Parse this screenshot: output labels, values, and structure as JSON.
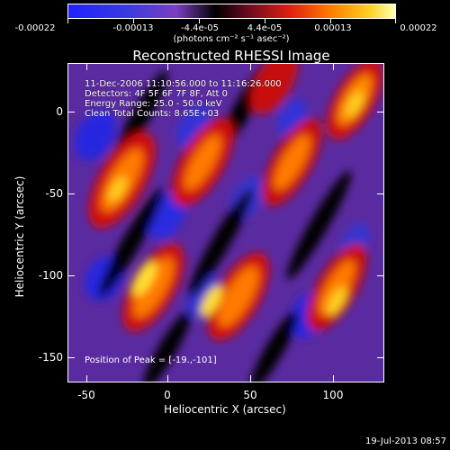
{
  "colorbar": {
    "tick_labels": [
      "-0.00022",
      "-0.00013",
      "-4.4e-05",
      "4.4e-05",
      "0.00013",
      "0.00022"
    ],
    "units": "(photons cm⁻² s⁻¹ asec⁻²)"
  },
  "title": "Reconstructed RHESSI Image",
  "info": {
    "time_range": "11-Dec-2006 11:10:56.000 to 11:16:26.000",
    "detectors": "Detectors: 4F 5F 6F 7F 8F, Att 0",
    "energy": "Energy Range: 25.0 - 50.0 keV",
    "method": "Clean    Total Counts: 8.65E+03"
  },
  "peak": "Position of Peak = [-19.,-101]",
  "axes": {
    "x_title": "Heliocentric X (arcsec)",
    "y_title": "Heliocentric Y (arcsec)",
    "x_ticks": [
      "-50",
      "0",
      "50",
      "100"
    ],
    "y_ticks": [
      "0",
      "-50",
      "-100",
      "-150"
    ]
  },
  "timestamp": "19-Jul-2013 08:57"
}
